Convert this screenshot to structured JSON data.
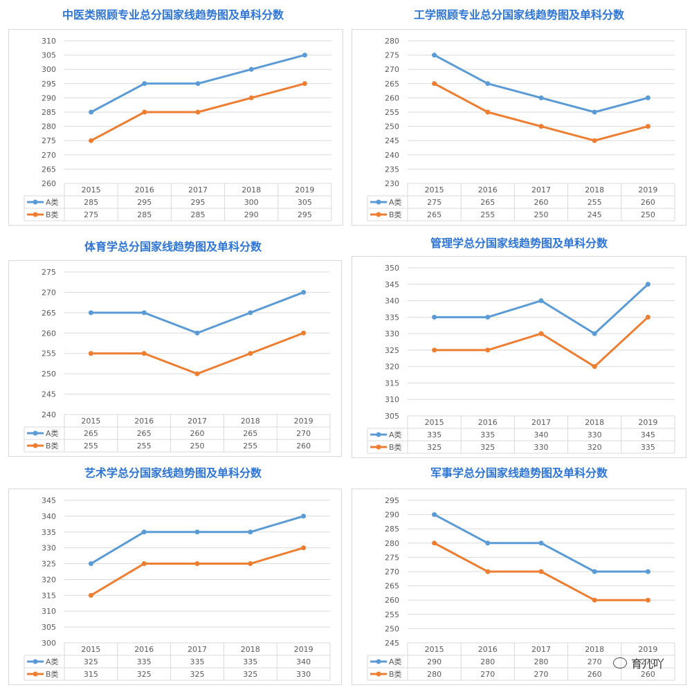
{
  "colors": {
    "series_a": "#5b9bd5",
    "series_b": "#ed7d31",
    "grid": "#d9d9d9",
    "title": "#2e75d6",
    "text": "#595959"
  },
  "watermark": {
    "text": "育儿吖",
    "icon": "wechat-icon"
  },
  "chart_data": [
    {
      "type": "line",
      "title": "中医类照顾专业总分国家线趋势图及单科分数",
      "categories": [
        "2015",
        "2016",
        "2017",
        "2018",
        "2019"
      ],
      "ylim": [
        260,
        310
      ],
      "ystep": 5,
      "grid": true,
      "legend": "bottom-left data table",
      "series": [
        {
          "name": "A类",
          "values": [
            285,
            295,
            295,
            300,
            305
          ]
        },
        {
          "name": "B类",
          "values": [
            275,
            285,
            285,
            290,
            295
          ]
        }
      ]
    },
    {
      "type": "line",
      "title": "工学照顾专业总分国家线趋势图及单科分数",
      "categories": [
        "2015",
        "2016",
        "2017",
        "2018",
        "2019"
      ],
      "ylim": [
        230,
        280
      ],
      "ystep": 5,
      "grid": true,
      "legend": "bottom-left data table",
      "series": [
        {
          "name": "A类",
          "values": [
            275,
            265,
            260,
            255,
            260
          ]
        },
        {
          "name": "B类",
          "values": [
            265,
            255,
            250,
            245,
            250
          ]
        }
      ]
    },
    {
      "type": "line",
      "title": "体育学总分国家线趋势图及单科分数",
      "categories": [
        "2015",
        "2016",
        "2017",
        "2018",
        "2019"
      ],
      "ylim": [
        240,
        275
      ],
      "ystep": 5,
      "grid": true,
      "legend": "bottom-left data table",
      "series": [
        {
          "name": "A类",
          "values": [
            265,
            265,
            260,
            265,
            270
          ]
        },
        {
          "name": "B类",
          "values": [
            255,
            255,
            250,
            255,
            260
          ]
        }
      ]
    },
    {
      "type": "line",
      "title": "管理学总分国家线趋势图及单科分数",
      "categories": [
        "2015",
        "2016",
        "2017",
        "2018",
        "2019"
      ],
      "ylim": [
        305,
        350
      ],
      "ystep": 5,
      "grid": true,
      "legend": "bottom-left data table",
      "series": [
        {
          "name": "A类",
          "values": [
            335,
            335,
            340,
            330,
            345
          ]
        },
        {
          "name": "B类",
          "values": [
            325,
            325,
            330,
            320,
            335
          ]
        }
      ]
    },
    {
      "type": "line",
      "title": "艺术学总分国家线趋势图及单科分数",
      "categories": [
        "2015",
        "2016",
        "2017",
        "2018",
        "2019"
      ],
      "ylim": [
        300,
        345
      ],
      "ystep": 5,
      "grid": true,
      "legend": "bottom-left data table",
      "series": [
        {
          "name": "A类",
          "values": [
            325,
            335,
            335,
            335,
            340
          ]
        },
        {
          "name": "B类",
          "values": [
            315,
            325,
            325,
            325,
            330
          ]
        }
      ]
    },
    {
      "type": "line",
      "title": "军事学总分国家线趋势图及单科分数",
      "categories": [
        "2015",
        "2016",
        "2017",
        "2018",
        "2019"
      ],
      "ylim": [
        245,
        295
      ],
      "ystep": 5,
      "grid": true,
      "legend": "bottom-left data table",
      "series": [
        {
          "name": "A类",
          "values": [
            290,
            280,
            280,
            270,
            270
          ]
        },
        {
          "name": "B类",
          "values": [
            280,
            270,
            270,
            260,
            260
          ]
        }
      ]
    }
  ]
}
